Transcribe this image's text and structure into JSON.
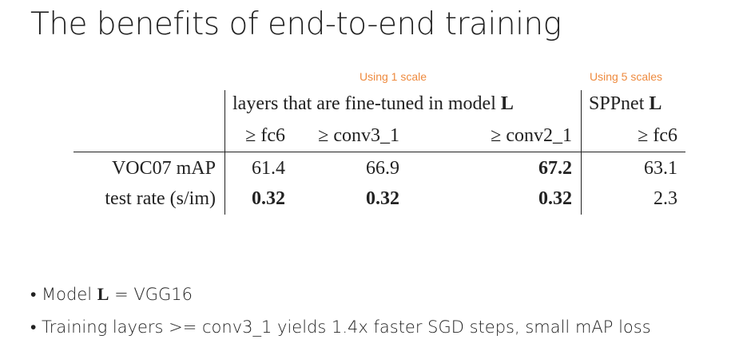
{
  "title": "The benefits of end-to-end training",
  "annotations": [
    "Using 1 scale",
    "Using 5 scales"
  ],
  "table": {
    "header": [
      [
        {
          "parts": [
            "layers that are fine-tuned in model ",
            "L"
          ]
        },
        {
          "parts": [
            "SPPnet ",
            "L"
          ]
        }
      ],
      [
        "≥ fc6",
        "≥ conv3_1",
        "≥ conv2_1",
        "≥ fc6"
      ]
    ],
    "rows": [
      {
        "label": "VOC07 mAP",
        "cells": [
          {
            "text": "61.4",
            "bold": false
          },
          {
            "text": "66.9",
            "bold": false
          },
          {
            "text": "67.2",
            "bold": true
          },
          {
            "text": "63.1",
            "bold": false
          }
        ]
      },
      {
        "label": "test rate (s/im)",
        "cells": [
          {
            "text": "0.32",
            "bold": true
          },
          {
            "text": "0.32",
            "bold": true
          },
          {
            "text": "0.32",
            "bold": true
          },
          {
            "text": "2.3",
            "bold": false
          }
        ]
      }
    ]
  },
  "bullets": [
    {
      "parts": [
        "Model ",
        "L",
        " = VGG16"
      ]
    },
    {
      "parts": [
        "Training layers >= conv3_1 yields 1.4x faster SGD steps, small mAP loss"
      ]
    }
  ]
}
